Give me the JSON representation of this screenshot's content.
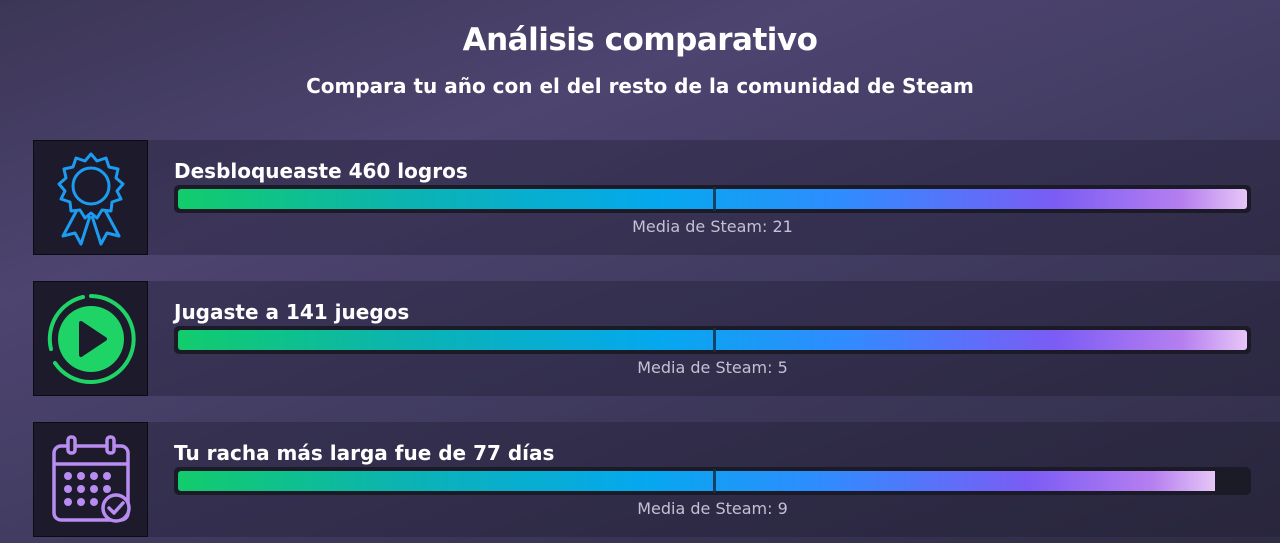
{
  "header": {
    "title": "Análisis comparativo",
    "subtitle": "Compara tu año con el del resto de la comunidad de Steam"
  },
  "stats": [
    {
      "icon": "achievement-ribbon-icon",
      "label": "Desbloqueaste 460 logros",
      "average": "Media de Steam: 21",
      "fill_fraction": 1.0,
      "average_marker_fraction": 0.5
    },
    {
      "icon": "play-circle-icon",
      "label": "Jugaste a 141 juegos",
      "average": "Media de Steam: 5",
      "fill_fraction": 1.0,
      "average_marker_fraction": 0.5
    },
    {
      "icon": "calendar-check-icon",
      "label": "Tu racha más larga fue de 77 días",
      "average": "Media de Steam: 9",
      "fill_fraction": 0.97,
      "average_marker_fraction": 0.5
    }
  ],
  "colors": {
    "ribbon_icon": "#1c9cf0",
    "play_icon": "#1fd466",
    "calendar_icon": "#b98cf2",
    "bar_start": "#12cc6c",
    "bar_end": "#e6c6f7"
  }
}
